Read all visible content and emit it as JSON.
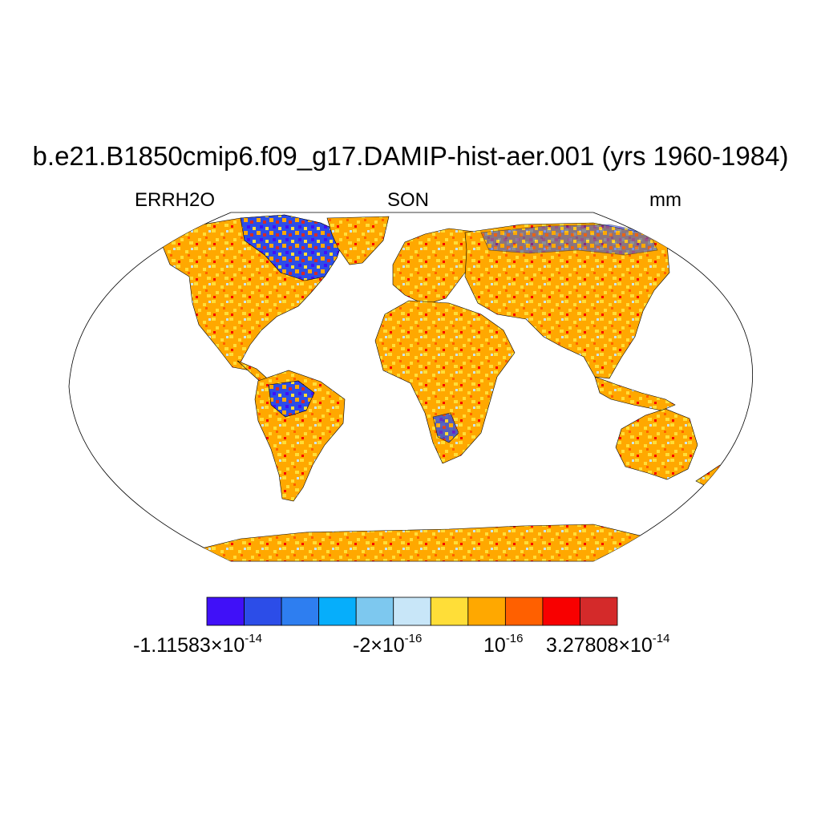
{
  "title": "b.e21.B1850cmip6.f09_g17.DAMIP-hist-aer.001 (yrs 1960-1984)",
  "left_label": "ERRH2O",
  "center_label": "SON",
  "right_label": "mm",
  "colorbar": {
    "colors": [
      "#4010f8",
      "#2c4de8",
      "#2e7ef0",
      "#06aefb",
      "#7dc8ef",
      "#c8e6f8",
      "#ffde38",
      "#ffa800",
      "#ff6000",
      "#f80000",
      "#d42a2a"
    ],
    "labels": [
      {
        "mantissa": "-1.11583",
        "sep": "×",
        "base": "10",
        "exp": "-14"
      },
      {
        "mantissa": "-2",
        "sep": "×",
        "base": "10",
        "exp": "-16"
      },
      {
        "mantissa": "",
        "sep": "",
        "base": "10",
        "exp": "-16"
      },
      {
        "mantissa": "3.27808",
        "sep": "×",
        "base": "10",
        "exp": "-14"
      }
    ]
  },
  "map": {
    "projection": "robinson",
    "ocean_color": "#ffffff",
    "land_base_color": "#ffa800",
    "coastline_color": "#000000"
  }
}
